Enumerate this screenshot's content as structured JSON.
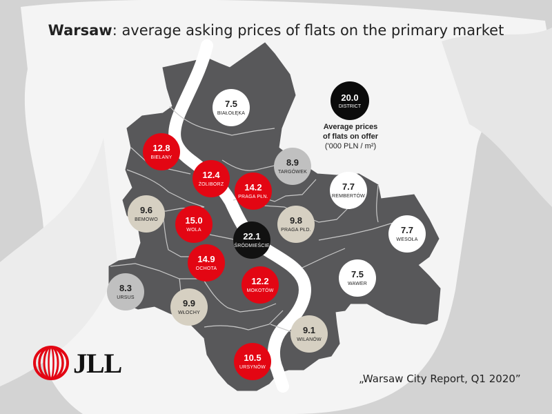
{
  "title": {
    "bold": "Warsaw",
    "rest": ": average asking prices of flats on the primary market"
  },
  "legend": {
    "sample_value": "20.0",
    "sample_label": "DISTRICT",
    "line1": "Average prices",
    "line2": "of flats on offer",
    "line3": "('000 PLN / m²)"
  },
  "districts": [
    {
      "id": "bialoleka",
      "name": "BIAŁOŁĘKA",
      "value": "7.5",
      "color": "white"
    },
    {
      "id": "bielany",
      "name": "BIELANY",
      "value": "12.8",
      "color": "red"
    },
    {
      "id": "targowek",
      "name": "TARGÓWEK",
      "value": "8.9",
      "color": "grey"
    },
    {
      "id": "zoliborz",
      "name": "ŻOLIBORZ",
      "value": "12.4",
      "color": "red"
    },
    {
      "id": "praga-pln",
      "name": "PRAGA PŁN.",
      "value": "14.2",
      "color": "red"
    },
    {
      "id": "rembertow",
      "name": "REMBERTÓW",
      "value": "7.7",
      "color": "white"
    },
    {
      "id": "bemowo",
      "name": "BEMOWO",
      "value": "9.6",
      "color": "beige"
    },
    {
      "id": "wola",
      "name": "WOLA",
      "value": "15.0",
      "color": "red"
    },
    {
      "id": "praga-pld",
      "name": "PRAGA PŁD.",
      "value": "9.8",
      "color": "beige"
    },
    {
      "id": "wesola",
      "name": "WESOŁA",
      "value": "7.7",
      "color": "white"
    },
    {
      "id": "srodmiescie",
      "name": "ŚRÓDMIEŚCIE",
      "value": "22.1",
      "color": "black"
    },
    {
      "id": "ochota",
      "name": "OCHOTA",
      "value": "14.9",
      "color": "red"
    },
    {
      "id": "wawer",
      "name": "WAWER",
      "value": "7.5",
      "color": "white"
    },
    {
      "id": "ursus",
      "name": "URSUS",
      "value": "8.3",
      "color": "grey"
    },
    {
      "id": "mokotow",
      "name": "MOKOTÓW",
      "value": "12.2",
      "color": "red"
    },
    {
      "id": "wlochy",
      "name": "WŁOCHY",
      "value": "9.9",
      "color": "beige"
    },
    {
      "id": "wilanow",
      "name": "WILANÓW",
      "value": "9.1",
      "color": "beige"
    },
    {
      "id": "ursynow",
      "name": "URSYNÓW",
      "value": "10.5",
      "color": "red"
    }
  ],
  "logo": {
    "word": "JLL",
    "color": "#e30613"
  },
  "source": "„Warsaw City Report, Q1 2020”",
  "colors": {
    "map": "#58585a",
    "river": "#ffffff",
    "red": "#e30613",
    "white": "#ffffff",
    "grey": "#c0c0c0",
    "beige": "#d6d0c2",
    "black": "#111111"
  }
}
